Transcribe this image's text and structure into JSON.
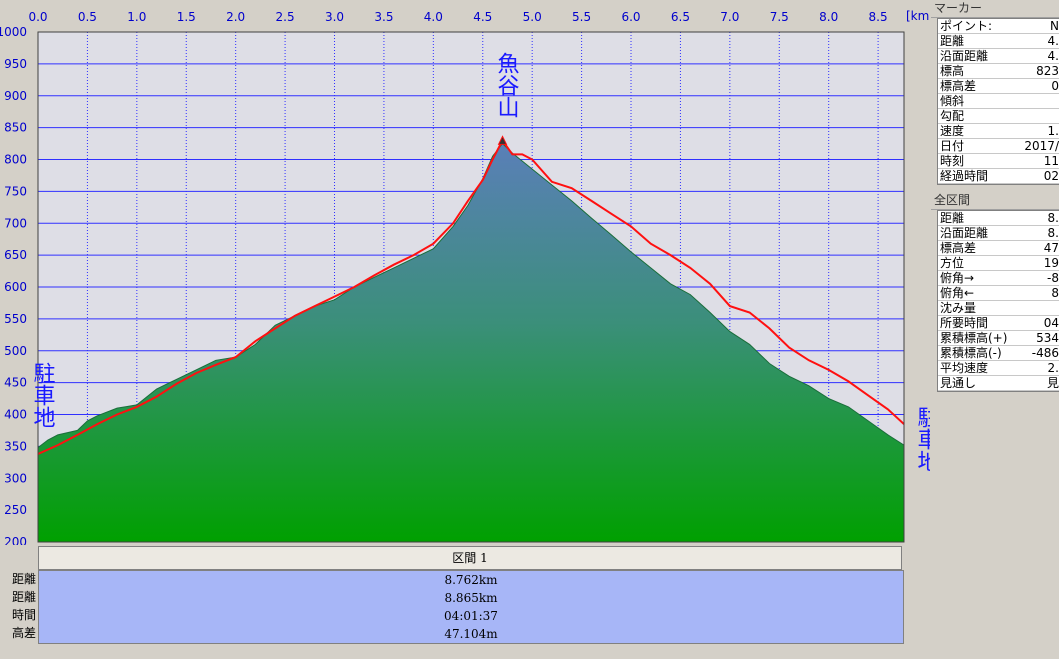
{
  "chart_data": {
    "type": "area",
    "x_unit": "[km]",
    "xlim": [
      0,
      8.762
    ],
    "ylim": [
      200,
      1000
    ],
    "x_ticks": [
      "0.0",
      "0.5",
      "1.0",
      "1.5",
      "2.0",
      "2.5",
      "3.0",
      "3.5",
      "4.0",
      "4.5",
      "5.0",
      "5.5",
      "6.0",
      "6.5",
      "7.0",
      "7.5",
      "8.0",
      "8.5"
    ],
    "y_ticks": [
      "1000",
      "950",
      "900",
      "850",
      "800",
      "750",
      "700",
      "650",
      "600",
      "550",
      "500",
      "450",
      "400",
      "350",
      "300",
      "250",
      "200"
    ],
    "grid": true,
    "terrain_profile": {
      "x": [
        0,
        0.1,
        0.2,
        0.4,
        0.5,
        0.6,
        0.8,
        1.0,
        1.2,
        1.4,
        1.6,
        1.8,
        2.0,
        2.2,
        2.4,
        2.6,
        2.8,
        3.0,
        3.2,
        3.4,
        3.6,
        3.8,
        4.0,
        4.2,
        4.35,
        4.5,
        4.6,
        4.7,
        4.8,
        5.0,
        5.2,
        5.4,
        5.6,
        5.8,
        6.0,
        6.2,
        6.4,
        6.6,
        6.8,
        7.0,
        7.2,
        7.4,
        7.6,
        7.8,
        8.0,
        8.2,
        8.4,
        8.6,
        8.762
      ],
      "y": [
        348,
        360,
        368,
        375,
        390,
        398,
        410,
        415,
        440,
        455,
        470,
        485,
        490,
        510,
        540,
        555,
        570,
        580,
        600,
        615,
        630,
        645,
        660,
        695,
        728,
        770,
        805,
        825,
        810,
        785,
        760,
        735,
        708,
        682,
        655,
        630,
        605,
        588,
        560,
        530,
        510,
        480,
        460,
        445,
        425,
        412,
        390,
        368,
        352
      ]
    },
    "series": [
      {
        "x": [
          0,
          0.2,
          0.4,
          0.6,
          0.8,
          1.0,
          1.2,
          1.4,
          1.6,
          1.8,
          2.0,
          2.2,
          2.4,
          2.6,
          2.8,
          3.0,
          3.2,
          3.4,
          3.6,
          3.8,
          4.0,
          4.2,
          4.35,
          4.5,
          4.6,
          4.7,
          4.8,
          4.9,
          5.0,
          5.2,
          5.4,
          5.6,
          5.8,
          6.0,
          6.2,
          6.4,
          6.6,
          6.8,
          7.0,
          7.2,
          7.4,
          7.6,
          7.8,
          8.0,
          8.2,
          8.4,
          8.6,
          8.762
        ],
        "y": [
          338,
          352,
          368,
          385,
          400,
          412,
          428,
          448,
          465,
          478,
          490,
          515,
          535,
          555,
          570,
          585,
          600,
          618,
          635,
          650,
          668,
          700,
          735,
          768,
          800,
          830,
          808,
          808,
          800,
          765,
          755,
          735,
          715,
          695,
          668,
          650,
          630,
          605,
          570,
          560,
          535,
          505,
          485,
          470,
          452,
          430,
          408,
          385
        ]
      }
    ],
    "annotations": [
      {
        "text": "魚谷山",
        "x": 4.7,
        "y": 830
      },
      {
        "text": "駐車地",
        "position": "left"
      },
      {
        "text": "駐車地",
        "position": "right"
      }
    ]
  },
  "marker_panel": {
    "title": "マーカー",
    "rows": [
      {
        "label": "ポイント:",
        "value": "N"
      },
      {
        "label": "距離",
        "value": "4."
      },
      {
        "label": "沿面距離",
        "value": "4."
      },
      {
        "label": "標高",
        "value": "823"
      },
      {
        "label": "標高差",
        "value": "0"
      },
      {
        "label": "傾斜",
        "value": ""
      },
      {
        "label": "勾配",
        "value": ""
      },
      {
        "label": "速度",
        "value": "1."
      },
      {
        "label": "日付",
        "value": "2017/"
      },
      {
        "label": "時刻",
        "value": "11"
      },
      {
        "label": "経過時間",
        "value": "02"
      }
    ]
  },
  "total_panel": {
    "title": "全区間",
    "rows": [
      {
        "label": "距離",
        "value": "8."
      },
      {
        "label": "沿面距離",
        "value": "8."
      },
      {
        "label": "標高差",
        "value": "47"
      },
      {
        "label": "方位",
        "value": "19"
      },
      {
        "label": "俯角→",
        "value": "-8"
      },
      {
        "label": "俯角←",
        "value": "8"
      },
      {
        "label": "沈み量",
        "value": ""
      },
      {
        "label": "所要時間",
        "value": "04"
      },
      {
        "label": "累積標高(+)",
        "value": "534"
      },
      {
        "label": "累積標高(-)",
        "value": "-486"
      },
      {
        "label": "平均速度",
        "value": "2."
      },
      {
        "label": "見通し",
        "value": "見"
      }
    ]
  },
  "interval": {
    "header": "区間 1",
    "rows": [
      {
        "label": "距離",
        "value": "8.762km"
      },
      {
        "label": "距離",
        "value": "8.865km"
      },
      {
        "label": "時間",
        "value": "04:01:37"
      },
      {
        "label": "高差",
        "value": "47.104m"
      }
    ]
  },
  "colors": {
    "plot_bg": "#dedee6",
    "grid": "#3030ff",
    "axis_text": "#0000cc",
    "terrain_top": "#5a7fb8",
    "terrain_bottom": "#00a000",
    "track": "#ff1010",
    "interval_bg": "#a7b6f7"
  }
}
